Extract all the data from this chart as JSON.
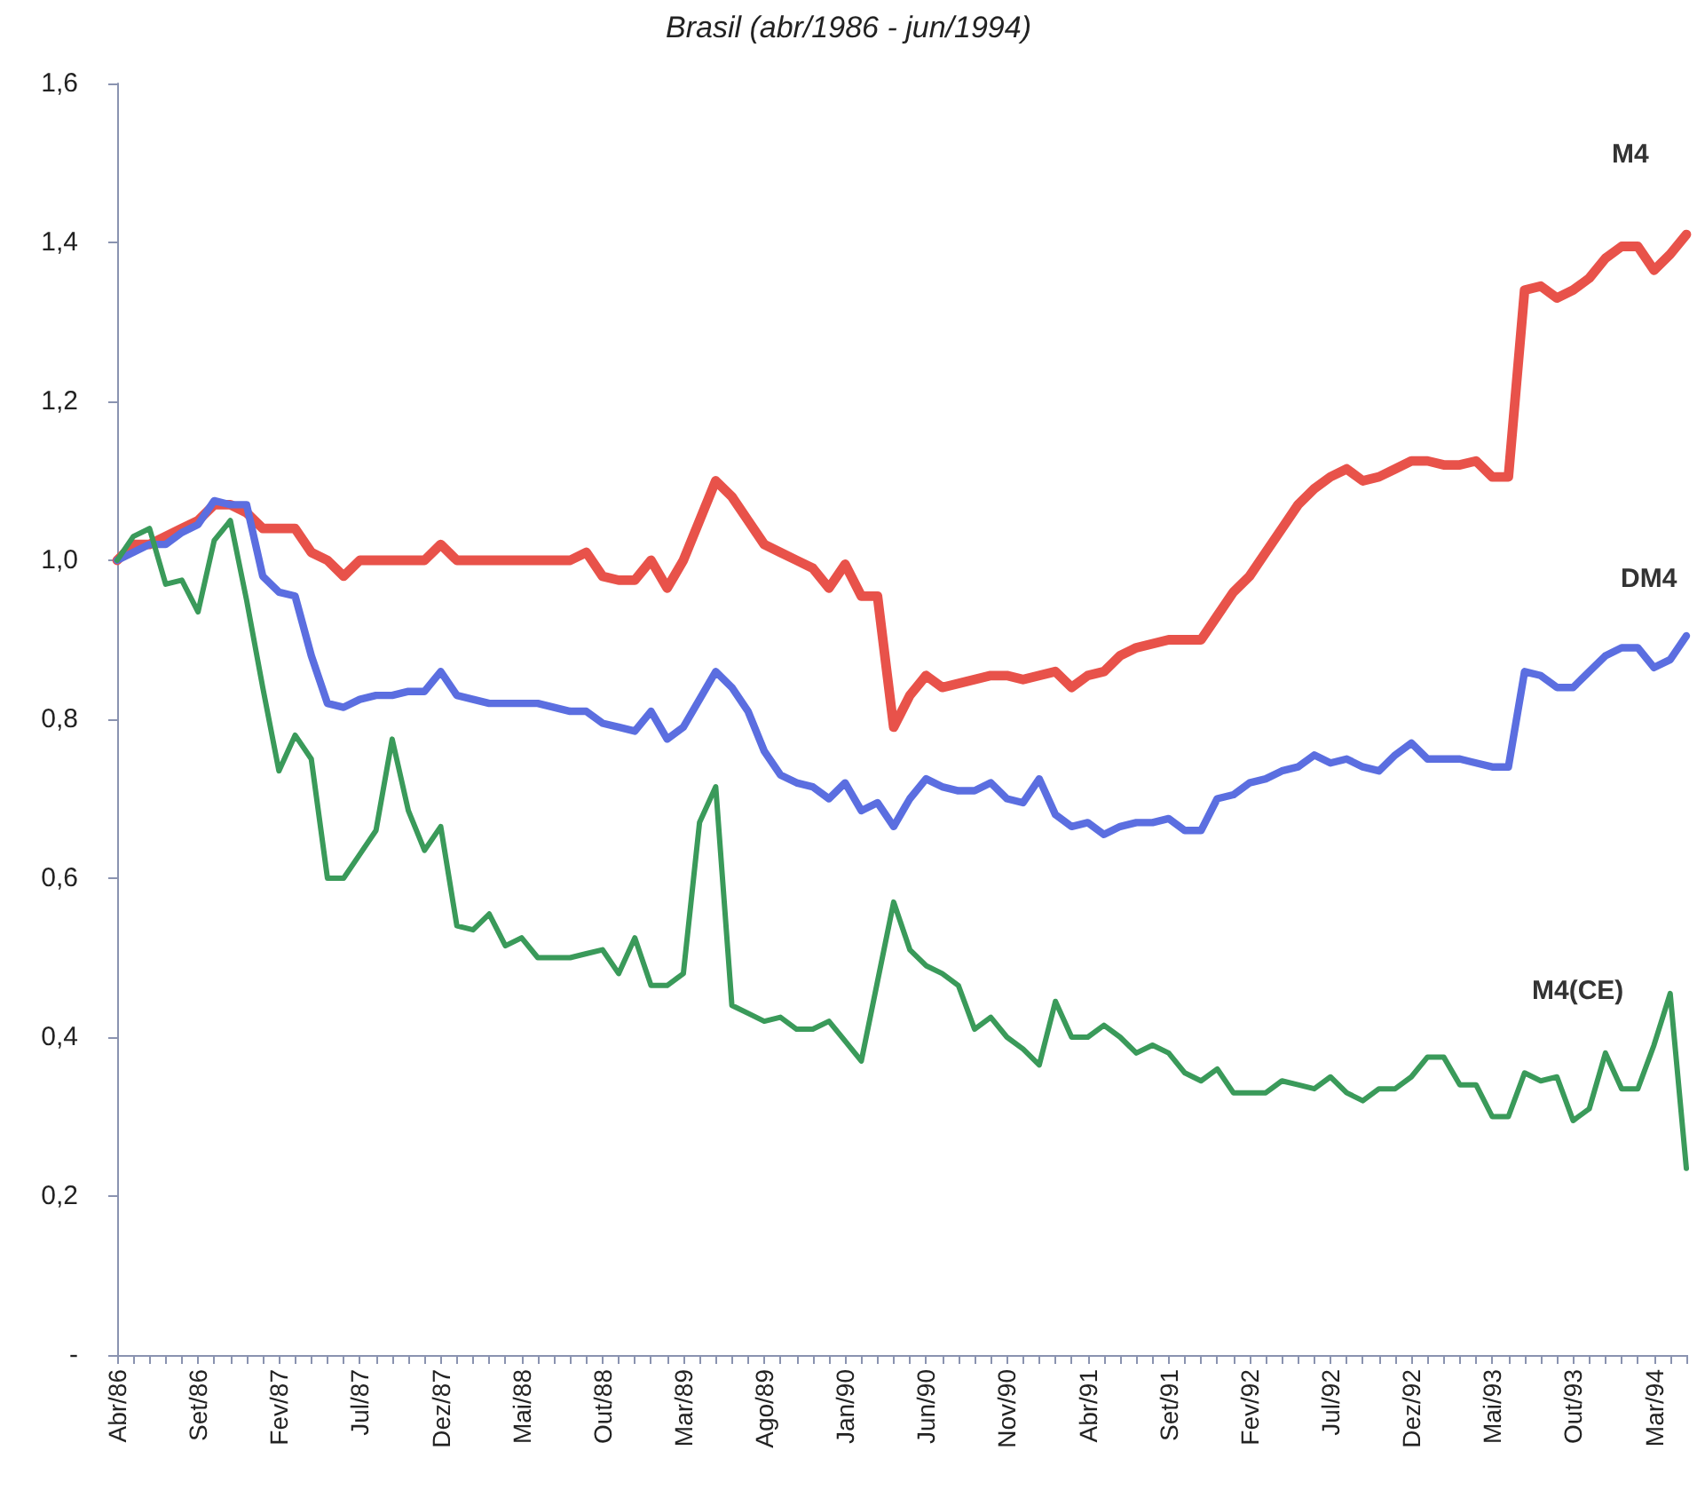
{
  "chart_data": {
    "type": "line",
    "title": "Brasil (abr/1986 - jun/1994)",
    "categories": [
      "Abr/86",
      null,
      null,
      null,
      null,
      "Set/86",
      null,
      null,
      null,
      null,
      "Fev/87",
      null,
      null,
      null,
      null,
      "Jul/87",
      null,
      null,
      null,
      null,
      "Dez/87",
      null,
      null,
      null,
      null,
      "Mai/88",
      null,
      null,
      null,
      null,
      "Out/88",
      null,
      null,
      null,
      null,
      "Mar/89",
      null,
      null,
      null,
      null,
      "Ago/89",
      null,
      null,
      null,
      null,
      "Jan/90",
      null,
      null,
      null,
      null,
      "Jun/90",
      null,
      null,
      null,
      null,
      "Nov/90",
      null,
      null,
      null,
      null,
      "Abr/91",
      null,
      null,
      null,
      null,
      "Set/91",
      null,
      null,
      null,
      null,
      "Fev/92",
      null,
      null,
      null,
      null,
      "Jul/92",
      null,
      null,
      null,
      null,
      "Dez/92",
      null,
      null,
      null,
      null,
      "Mai/93",
      null,
      null,
      null,
      null,
      "Out/93",
      null,
      null,
      null,
      null,
      "Mar/94",
      null,
      null
    ],
    "series": [
      {
        "name": "M4",
        "color": "#e8524a",
        "values": [
          1.0,
          1.02,
          1.02,
          1.03,
          1.04,
          1.05,
          1.07,
          1.07,
          1.06,
          1.04,
          1.04,
          1.04,
          1.01,
          1.0,
          0.98,
          1.0,
          1.0,
          1.0,
          1.0,
          1.0,
          1.02,
          1.0,
          1.0,
          1.0,
          1.0,
          1.0,
          1.0,
          1.0,
          1.0,
          1.01,
          0.98,
          0.975,
          0.975,
          1.0,
          0.965,
          1.0,
          1.05,
          1.1,
          1.08,
          1.05,
          1.02,
          1.01,
          1.0,
          0.99,
          0.965,
          0.995,
          0.955,
          0.955,
          0.79,
          0.83,
          0.855,
          0.84,
          0.845,
          0.85,
          0.855,
          0.855,
          0.85,
          0.855,
          0.86,
          0.84,
          0.855,
          0.86,
          0.88,
          0.89,
          0.895,
          0.9,
          0.9,
          0.9,
          0.93,
          0.96,
          0.98,
          1.01,
          1.04,
          1.07,
          1.09,
          1.105,
          1.115,
          1.1,
          1.105,
          1.115,
          1.125,
          1.125,
          1.12,
          1.12,
          1.125,
          1.105,
          1.105,
          1.34,
          1.345,
          1.33,
          1.34,
          1.355,
          1.38,
          1.395,
          1.395,
          1.365,
          1.385,
          1.41
        ]
      },
      {
        "name": "DM4",
        "color": "#5b6ee0",
        "values": [
          1.0,
          1.01,
          1.02,
          1.02,
          1.035,
          1.045,
          1.075,
          1.07,
          1.07,
          0.98,
          0.96,
          0.955,
          0.88,
          0.82,
          0.815,
          0.825,
          0.83,
          0.83,
          0.835,
          0.835,
          0.86,
          0.83,
          0.825,
          0.82,
          0.82,
          0.82,
          0.82,
          0.815,
          0.81,
          0.81,
          0.795,
          0.79,
          0.785,
          0.81,
          0.775,
          0.79,
          0.825,
          0.86,
          0.84,
          0.81,
          0.76,
          0.73,
          0.72,
          0.715,
          0.7,
          0.72,
          0.685,
          0.695,
          0.665,
          0.7,
          0.725,
          0.715,
          0.71,
          0.71,
          0.72,
          0.7,
          0.695,
          0.725,
          0.68,
          0.665,
          0.67,
          0.655,
          0.665,
          0.67,
          0.67,
          0.675,
          0.66,
          0.66,
          0.7,
          0.705,
          0.72,
          0.725,
          0.735,
          0.74,
          0.755,
          0.745,
          0.75,
          0.74,
          0.735,
          0.755,
          0.77,
          0.75,
          0.75,
          0.75,
          0.745,
          0.74,
          0.74,
          0.86,
          0.855,
          0.84,
          0.84,
          0.86,
          0.88,
          0.89,
          0.89,
          0.865,
          0.875,
          0.905
        ]
      },
      {
        "name": "M4(CE)",
        "color": "#3a9a5a",
        "values": [
          1.0,
          1.03,
          1.04,
          0.97,
          0.975,
          0.935,
          1.025,
          1.05,
          0.95,
          0.84,
          0.735,
          0.78,
          0.75,
          0.6,
          0.6,
          0.63,
          0.66,
          0.775,
          0.685,
          0.635,
          0.665,
          0.54,
          0.535,
          0.555,
          0.515,
          0.525,
          0.5,
          0.5,
          0.5,
          0.505,
          0.51,
          0.48,
          0.525,
          0.465,
          0.465,
          0.48,
          0.67,
          0.715,
          0.44,
          0.43,
          0.42,
          0.425,
          0.41,
          0.41,
          0.42,
          0.395,
          0.37,
          0.47,
          0.57,
          0.51,
          0.49,
          0.48,
          0.465,
          0.41,
          0.425,
          0.4,
          0.385,
          0.365,
          0.445,
          0.4,
          0.4,
          0.415,
          0.4,
          0.38,
          0.39,
          0.38,
          0.355,
          0.345,
          0.36,
          0.33,
          0.33,
          0.33,
          0.345,
          0.34,
          0.335,
          0.35,
          0.33,
          0.32,
          0.335,
          0.335,
          0.35,
          0.375,
          0.375,
          0.34,
          0.34,
          0.3,
          0.3,
          0.355,
          0.345,
          0.35,
          0.295,
          0.31,
          0.38,
          0.335,
          0.335,
          0.39,
          0.455,
          0.235
        ]
      }
    ],
    "ylim": [
      0,
      1.6
    ],
    "yticks": [
      {
        "value": 0,
        "label": "-"
      },
      {
        "value": 0.2,
        "label": "0,2"
      },
      {
        "value": 0.4,
        "label": "0,4"
      },
      {
        "value": 0.6,
        "label": "0,6"
      },
      {
        "value": 0.8,
        "label": "0,8"
      },
      {
        "value": 1.0,
        "label": "1,0"
      },
      {
        "value": 1.2,
        "label": "1,2"
      },
      {
        "value": 1.4,
        "label": "1,4"
      },
      {
        "value": 1.6,
        "label": "1,6"
      }
    ],
    "grid": false,
    "legend": false,
    "marker": "none",
    "line_style": "solid"
  }
}
